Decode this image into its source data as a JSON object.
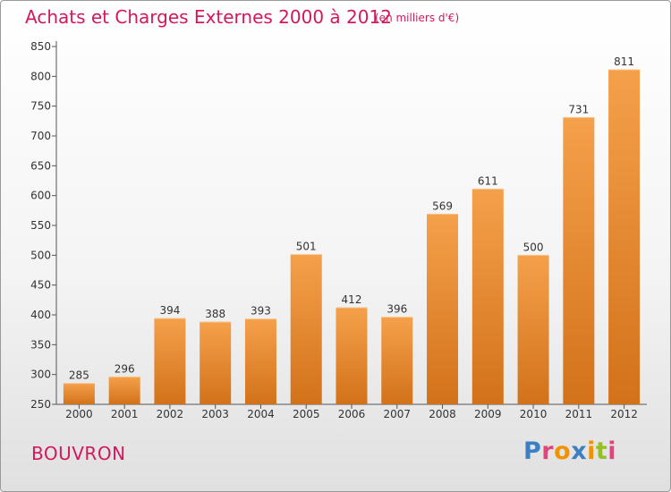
{
  "header": {
    "title": "Achats et Charges Externes 2000 à 2012",
    "unit": "(en milliers d'€)"
  },
  "footer": {
    "commune": "BOUVRON",
    "logo": [
      "P",
      "r",
      "o",
      "x",
      "i",
      "t",
      "i"
    ]
  },
  "colors": {
    "accent": "#d2185e",
    "bar_light": "#f5a04b",
    "bar_dark": "#d2721a",
    "logo": [
      "#3c7fc2",
      "#e0467c",
      "#f39200",
      "#3c7fc2",
      "#f39200",
      "#94c11f",
      "#e0467c"
    ]
  },
  "chart_data": {
    "type": "bar",
    "categories": [
      "2000",
      "2001",
      "2002",
      "2003",
      "2004",
      "2005",
      "2006",
      "2007",
      "2008",
      "2009",
      "2010",
      "2011",
      "2012"
    ],
    "values": [
      285,
      296,
      394,
      388,
      393,
      501,
      412,
      396,
      569,
      611,
      500,
      731,
      811
    ],
    "value_labels": [
      "285",
      "296",
      "394",
      "388",
      "393",
      "501",
      "412",
      "396",
      "569",
      "611",
      "500",
      "731",
      "811"
    ],
    "ylim": [
      250,
      850
    ],
    "yticks": [
      250,
      300,
      350,
      400,
      450,
      500,
      550,
      600,
      650,
      700,
      750,
      800,
      850
    ],
    "ytick_labels": [
      "250",
      "300",
      "350",
      "400",
      "450",
      "500",
      "550",
      "600",
      "650",
      "700",
      "750",
      "800",
      "850"
    ],
    "grid": false,
    "xlabel": "",
    "ylabel": ""
  }
}
